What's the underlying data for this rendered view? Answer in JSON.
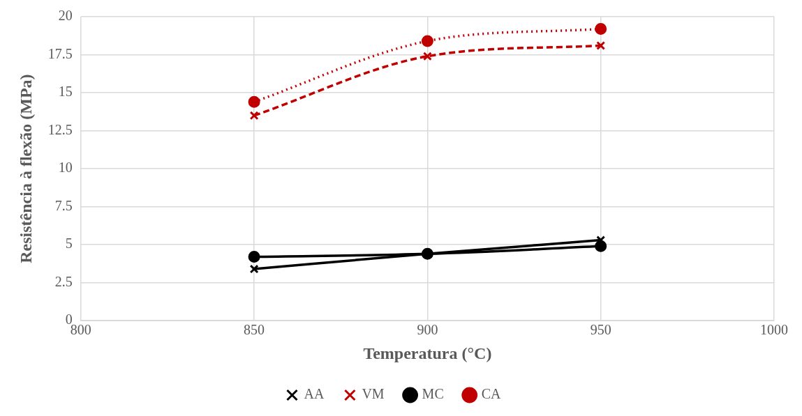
{
  "chart_data": {
    "type": "line",
    "xlabel": "Temperatura (°C)",
    "ylabel": "Resistência à flexão (MPa)",
    "x": [
      850,
      900,
      950
    ],
    "series": [
      {
        "name": "AA",
        "color": "#000000",
        "values": [
          3.4,
          4.4,
          5.3
        ],
        "marker": "cross",
        "line_style": "solid"
      },
      {
        "name": "VM",
        "color": "#c00000",
        "values": [
          13.5,
          17.4,
          18.1
        ],
        "marker": "cross",
        "line_style": "dashed"
      },
      {
        "name": "MC",
        "color": "#000000",
        "values": [
          4.2,
          4.4,
          4.9
        ],
        "marker": "circle",
        "line_style": "solid"
      },
      {
        "name": "CA",
        "color": "#c00000",
        "values": [
          14.4,
          18.4,
          19.2
        ],
        "marker": "circle",
        "line_style": "dotted"
      }
    ],
    "xlim": [
      800,
      1000
    ],
    "xticks": [
      800,
      850,
      900,
      950,
      1000
    ],
    "ylim": [
      0,
      20
    ],
    "yticks": [
      0,
      2.5,
      5,
      7.5,
      10,
      12.5,
      15,
      17.5,
      20
    ],
    "grid": true,
    "legend": "bottom"
  }
}
